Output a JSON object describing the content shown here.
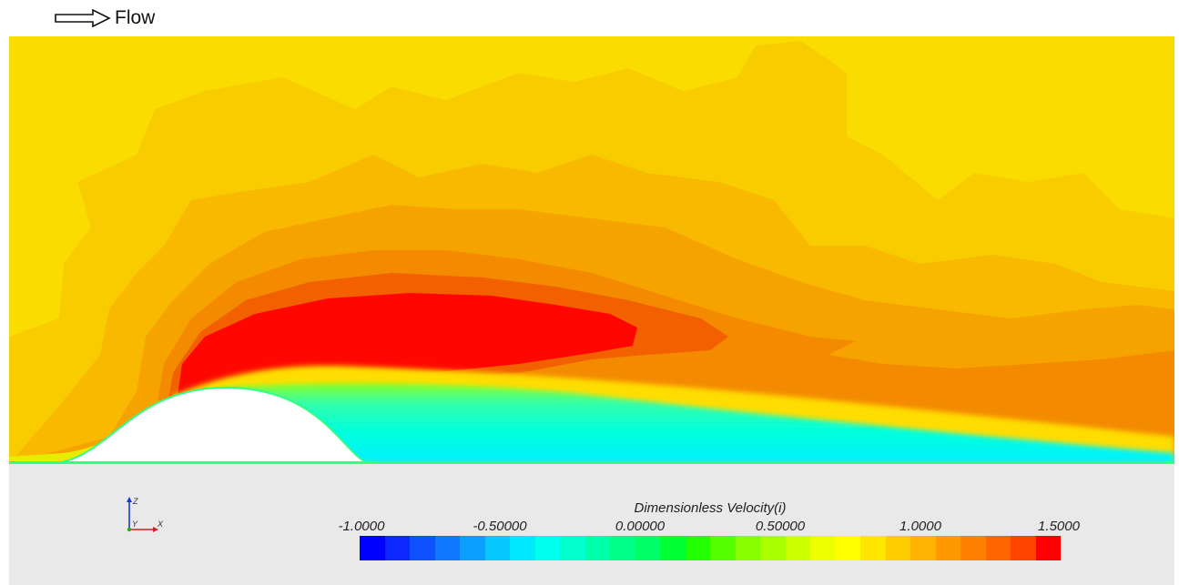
{
  "flow_label": "Flow",
  "legend": {
    "title": "Dimensionless Velocity(i)",
    "ticks": [
      "-1.0000",
      "-0.50000",
      "0.00000",
      "0.50000",
      "1.0000",
      "1.5000"
    ],
    "range": [
      -1.0,
      1.5
    ],
    "colors": [
      "#0000ff",
      "#0a28ff",
      "#0f50ff",
      "#0f78ff",
      "#0aa0ff",
      "#05c8ff",
      "#00eaff",
      "#00ffee",
      "#00ffcc",
      "#00ffaa",
      "#00ff88",
      "#00ff66",
      "#00ff33",
      "#22ff00",
      "#55ff00",
      "#88ff00",
      "#aaff00",
      "#ccff00",
      "#eeff00",
      "#ffff00",
      "#ffe600",
      "#ffcc00",
      "#ffb300",
      "#ff9900",
      "#ff8000",
      "#ff6600",
      "#ff4400",
      "#ff0000"
    ]
  },
  "axes_labels": {
    "z": "Z",
    "y": "Y",
    "x": "X"
  }
}
